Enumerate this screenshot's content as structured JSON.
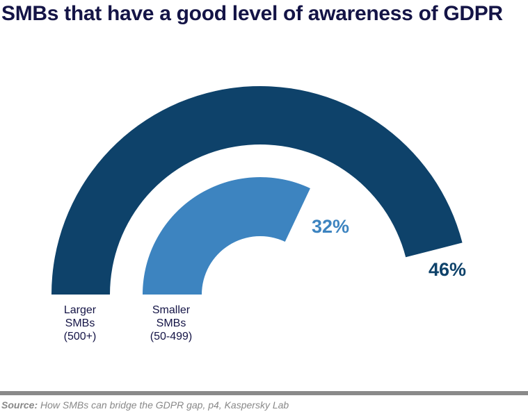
{
  "chart_data": {
    "type": "radial-bar",
    "title": "SMBs that have a good level of awareness of GDPR",
    "scale_max": 50,
    "categories": [
      "Larger SMBs (500+)",
      "Smaller SMBs (50-499)"
    ],
    "series": [
      {
        "name": "Larger SMBs (500+)",
        "label_lines": [
          "Larger",
          "SMBs",
          "(500+)"
        ],
        "value": 46,
        "value_label": "46%",
        "color": "#0e426a"
      },
      {
        "name": "Smaller SMBs (50-499)",
        "label_lines": [
          "Smaller",
          "SMBs",
          "(50-499)"
        ],
        "value": 32,
        "value_label": "32%",
        "color": "#3d84c0"
      }
    ]
  },
  "source": {
    "label": "Source:",
    "text": "How SMBs can bridge the GDPR gap, p4, Kaspersky Lab"
  }
}
